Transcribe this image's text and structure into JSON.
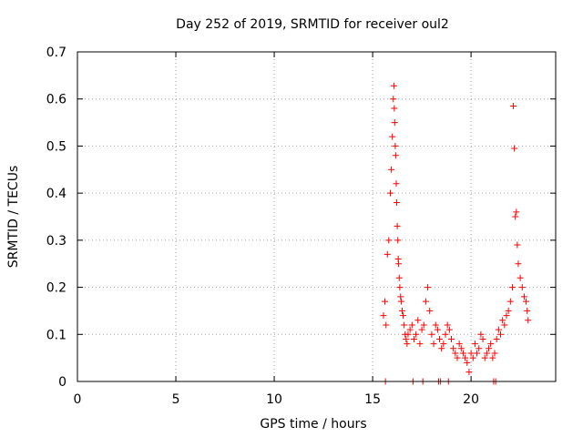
{
  "chart_data": {
    "type": "scatter",
    "title": "Day 252 of 2019, SRMTID for receiver oul2",
    "xlabel": "GPS time / hours",
    "ylabel": "SRMTID / TECUs",
    "xlim": [
      0,
      24.3
    ],
    "ylim": [
      0,
      0.7
    ],
    "grid": true,
    "marker": "plus",
    "color": "#ff0000",
    "x_ticks": [
      0,
      5,
      10,
      15,
      20
    ],
    "x_tick_labels": [
      "0",
      "5",
      "10",
      "15",
      "20"
    ],
    "y_ticks": [
      0,
      0.1,
      0.2,
      0.3,
      0.4,
      0.5,
      0.6,
      0.7
    ],
    "y_tick_labels": [
      "0",
      "0.1",
      "0.2",
      "0.3",
      "0.4",
      "0.5",
      "0.6",
      "0.7"
    ],
    "series": [
      {
        "name": "oul2",
        "x": [
          15.55,
          15.62,
          15.68,
          15.75,
          15.82,
          15.9,
          15.95,
          16.0,
          16.05,
          16.08,
          16.1,
          16.12,
          16.15,
          16.17,
          16.2,
          16.22,
          16.25,
          16.28,
          16.3,
          16.32,
          16.35,
          16.38,
          16.42,
          16.45,
          16.5,
          16.55,
          16.6,
          16.65,
          16.7,
          16.75,
          16.8,
          16.9,
          17.0,
          17.1,
          17.2,
          17.3,
          17.4,
          17.5,
          17.6,
          17.7,
          17.8,
          17.9,
          18.0,
          18.1,
          18.2,
          18.3,
          18.4,
          18.5,
          18.6,
          18.7,
          18.8,
          18.9,
          19.0,
          19.1,
          19.2,
          19.3,
          19.4,
          19.5,
          19.6,
          19.7,
          19.8,
          19.9,
          20.0,
          20.1,
          20.2,
          20.3,
          20.4,
          20.5,
          20.6,
          20.7,
          20.8,
          20.9,
          21.0,
          21.1,
          21.2,
          21.3,
          21.4,
          21.5,
          21.6,
          21.7,
          21.8,
          21.9,
          22.0,
          22.1,
          22.15,
          22.2,
          22.25,
          22.3,
          22.35,
          22.4,
          22.5,
          22.6,
          22.7,
          22.8,
          22.85,
          22.9
        ],
        "y": [
          0.14,
          0.17,
          0.12,
          0.27,
          0.3,
          0.4,
          0.45,
          0.52,
          0.6,
          0.628,
          0.58,
          0.55,
          0.5,
          0.48,
          0.42,
          0.38,
          0.33,
          0.3,
          0.26,
          0.25,
          0.22,
          0.2,
          0.18,
          0.17,
          0.15,
          0.14,
          0.12,
          0.1,
          0.09,
          0.08,
          0.1,
          0.11,
          0.12,
          0.09,
          0.1,
          0.13,
          0.08,
          0.11,
          0.12,
          0.17,
          0.2,
          0.15,
          0.1,
          0.08,
          0.12,
          0.11,
          0.09,
          0.07,
          0.08,
          0.1,
          0.12,
          0.11,
          0.09,
          0.07,
          0.06,
          0.05,
          0.08,
          0.07,
          0.06,
          0.05,
          0.04,
          0.02,
          0.06,
          0.05,
          0.08,
          0.06,
          0.07,
          0.1,
          0.09,
          0.05,
          0.06,
          0.07,
          0.08,
          0.05,
          0.06,
          0.09,
          0.11,
          0.1,
          0.13,
          0.12,
          0.14,
          0.15,
          0.17,
          0.2,
          0.585,
          0.495,
          0.35,
          0.36,
          0.29,
          0.25,
          0.22,
          0.2,
          0.18,
          0.17,
          0.15,
          0.13
        ]
      },
      {
        "name": "oul2-zero",
        "x": [
          15.65,
          17.05,
          17.55,
          18.35,
          18.45,
          18.85,
          21.15,
          21.25
        ],
        "y": [
          0,
          0,
          0,
          0,
          0,
          0,
          0,
          0
        ]
      }
    ]
  }
}
